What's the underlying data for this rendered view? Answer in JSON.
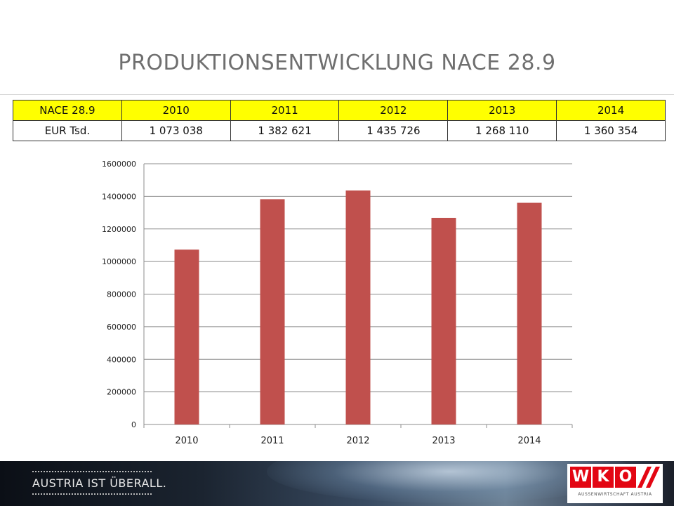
{
  "page": {
    "title": "PRODUKTIONSENTWICKLUNG NACE 28.9"
  },
  "table": {
    "header": [
      "NACE 28.9",
      "2010",
      "2011",
      "2012",
      "2013",
      "2014"
    ],
    "row": [
      "EUR Tsd.",
      "1 073 038",
      "1 382 621",
      "1 435 726",
      "1 268 110",
      "1 360 354"
    ]
  },
  "chart_data": {
    "type": "bar",
    "categories": [
      "2010",
      "2011",
      "2012",
      "2013",
      "2014"
    ],
    "values": [
      1073038,
      1382621,
      1435726,
      1268110,
      1360354
    ],
    "title": "",
    "xlabel": "",
    "ylabel": "",
    "ylim": [
      0,
      1600000
    ],
    "yticks": [
      0,
      200000,
      400000,
      600000,
      800000,
      1000000,
      1200000,
      1400000,
      1600000
    ],
    "ytick_labels": [
      "0",
      "200000",
      "400000",
      "600000",
      "800000",
      "1000000",
      "1200000",
      "1400000",
      "1600000"
    ],
    "grid": true,
    "bar_color": "#c0504d"
  },
  "footer": {
    "slogan": "AUSTRIA IST ÜBERALL.",
    "logo_letters": [
      "W",
      "K",
      "O"
    ],
    "logo_subtitle": "AUSSENWIRTSCHAFT AUSTRIA",
    "logo_color": "#e30613"
  }
}
